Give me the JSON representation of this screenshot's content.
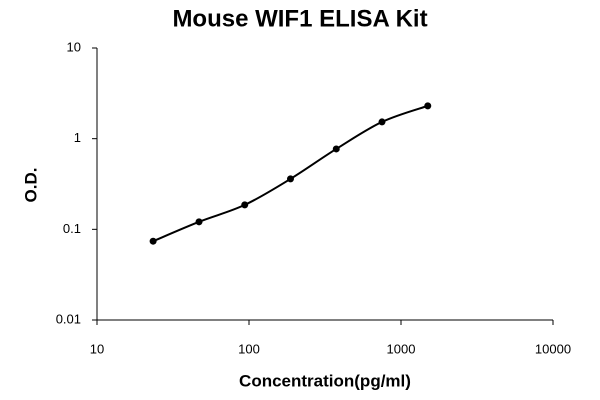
{
  "chart_data": {
    "type": "scatter",
    "title": "Mouse WIF1 ELISA Kit",
    "x_label": "Concentration(pg/ml)",
    "y_label": "O.D.",
    "x": [
      23.4,
      46.9,
      93.75,
      187.5,
      375,
      750,
      1500
    ],
    "values": [
      0.074,
      0.121,
      0.186,
      0.36,
      0.77,
      1.53,
      2.3
    ],
    "color": "#000000",
    "fit_line": true,
    "x_log": true,
    "y_log": true,
    "xlim": [
      10,
      10000
    ],
    "xticks": [
      10,
      100,
      1000,
      10000
    ],
    "ylim": [
      0.01,
      10
    ],
    "yticks": [
      0.01,
      0.1,
      1,
      10
    ],
    "grid": false
  }
}
